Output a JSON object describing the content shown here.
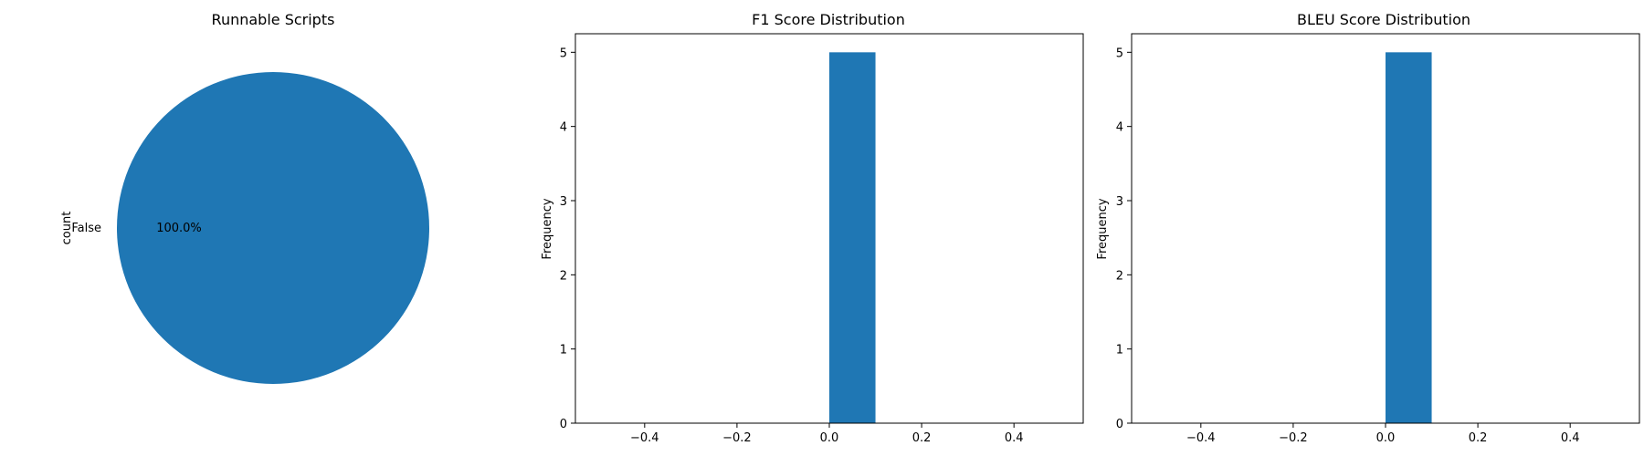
{
  "chart_data": [
    {
      "type": "pie",
      "title": "Runnable Scripts",
      "ylabel": "count",
      "labels": [
        "False"
      ],
      "values": [
        1
      ],
      "percent_labels": [
        "100.0%"
      ],
      "colors": [
        "#1f77b4"
      ]
    },
    {
      "type": "bar",
      "title": "F1 Score Distribution",
      "xlabel": "",
      "ylabel": "Frequency",
      "bins": [
        {
          "x0": 0.0,
          "x1": 0.1,
          "count": 5
        }
      ],
      "xlim": [
        -0.55,
        0.55
      ],
      "ylim": [
        0,
        5.25
      ],
      "xticks": [
        -0.4,
        -0.2,
        0.0,
        0.2,
        0.4
      ],
      "xtick_labels": [
        "−0.4",
        "−0.2",
        "0.0",
        "0.2",
        "0.4"
      ],
      "yticks": [
        0,
        1,
        2,
        3,
        4,
        5
      ],
      "ytick_labels": [
        "0",
        "1",
        "2",
        "3",
        "4",
        "5"
      ],
      "color": "#1f77b4"
    },
    {
      "type": "bar",
      "title": "BLEU Score Distribution",
      "xlabel": "",
      "ylabel": "Frequency",
      "bins": [
        {
          "x0": 0.0,
          "x1": 0.1,
          "count": 5
        }
      ],
      "xlim": [
        -0.55,
        0.55
      ],
      "ylim": [
        0,
        5.25
      ],
      "xticks": [
        -0.4,
        -0.2,
        0.0,
        0.2,
        0.4
      ],
      "xtick_labels": [
        "−0.4",
        "−0.2",
        "0.0",
        "0.2",
        "0.4"
      ],
      "yticks": [
        0,
        1,
        2,
        3,
        4,
        5
      ],
      "ytick_labels": [
        "0",
        "1",
        "2",
        "3",
        "4",
        "5"
      ],
      "color": "#1f77b4"
    }
  ]
}
